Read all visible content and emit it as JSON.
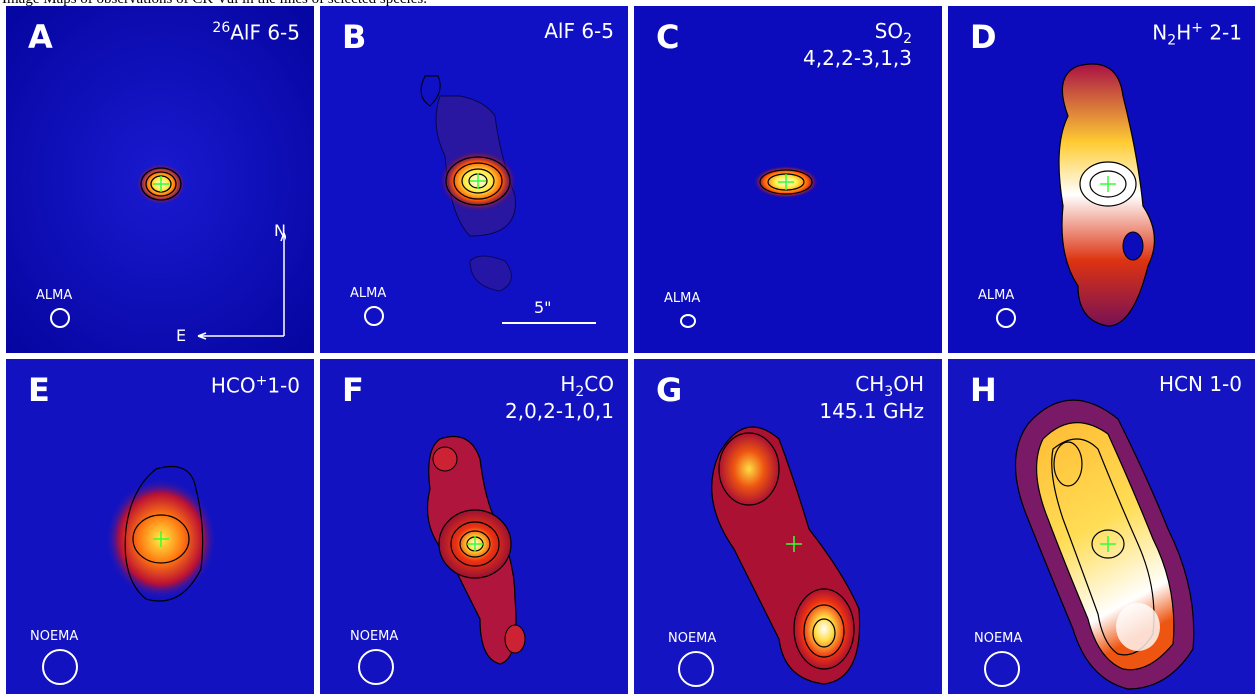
{
  "caption": "Image Maps of observations of CK Vul in the lines of selected species.",
  "panels": [
    {
      "letter": "A",
      "species_pre": "26",
      "species_main": "AlF 6-5",
      "line2": "",
      "telescope": "ALMA"
    },
    {
      "letter": "B",
      "species_pre": "",
      "species_main": "AlF 6-5",
      "line2": "",
      "telescope": "ALMA",
      "scale_label": "5\""
    },
    {
      "letter": "C",
      "species_pre": "",
      "species_main": "SO",
      "species_sub": "2",
      "line2": "4,2,2-3,1,3",
      "telescope": "ALMA"
    },
    {
      "letter": "D",
      "species_pre": "",
      "species_main": "N",
      "species_sub": "2",
      "species_tail": "H",
      "species_sup": "+",
      "species_end": " 2-1",
      "line2": "",
      "telescope": "ALMA"
    },
    {
      "letter": "E",
      "species_main": "HCO",
      "species_sup": "+",
      "species_end": "1-0",
      "line2": "",
      "telescope": "NOEMA"
    },
    {
      "letter": "F",
      "species_main": "H",
      "species_sub": "2",
      "species_tail": "CO",
      "line2": "2,0,2-1,0,1",
      "telescope": "NOEMA"
    },
    {
      "letter": "G",
      "species_main": "CH",
      "species_sub": "3",
      "species_tail": "OH",
      "line2": "145.1 GHz",
      "telescope": "NOEMA"
    },
    {
      "letter": "H",
      "species_main": "HCN 1-0",
      "line2": "",
      "telescope": "NOEMA"
    }
  ],
  "compass": {
    "north": "N",
    "east": "E"
  },
  "colors": {
    "background": "#0a0ab8",
    "contour": "#000000",
    "marker": "#33ff33"
  }
}
